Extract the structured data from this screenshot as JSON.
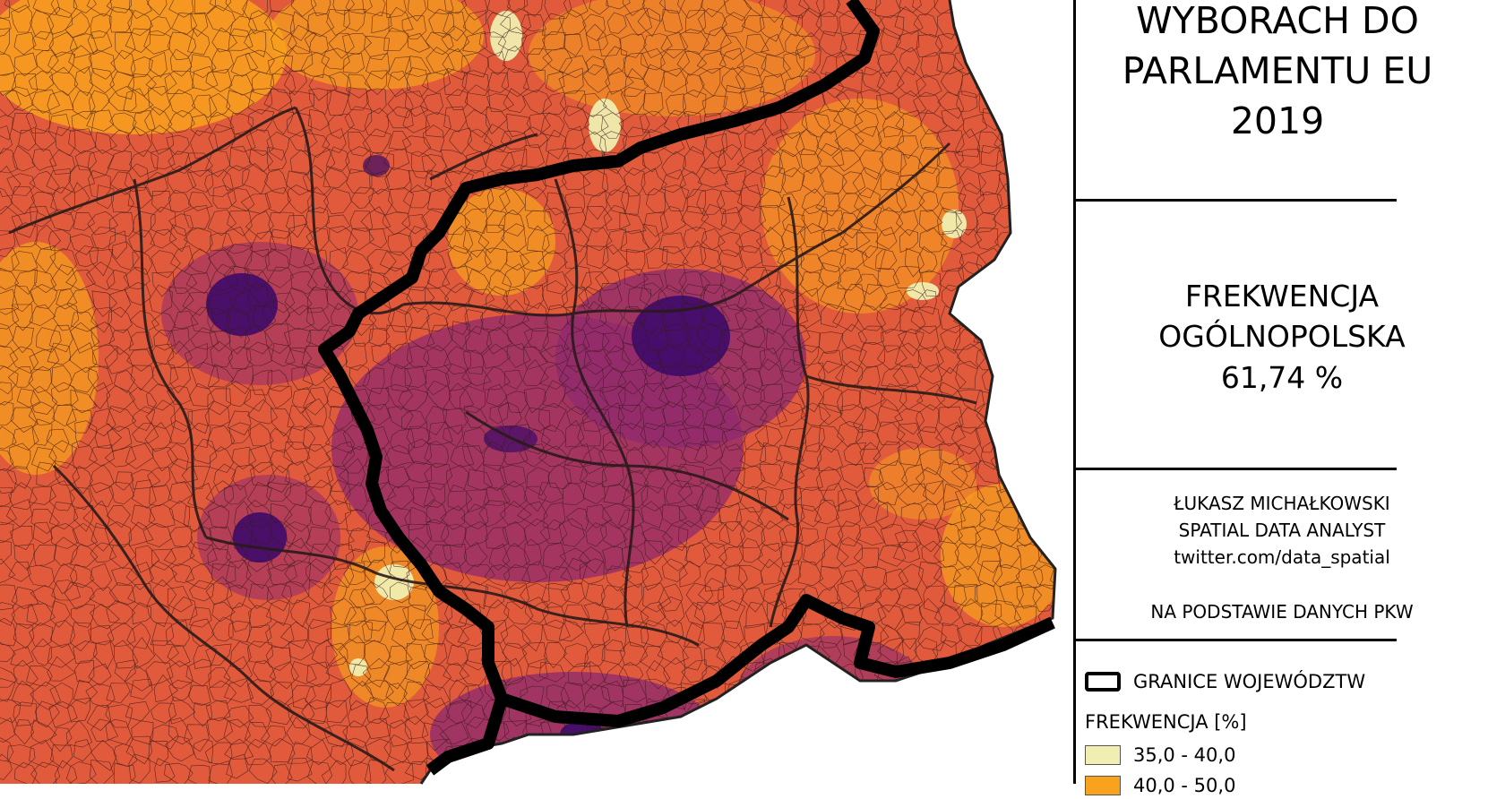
{
  "panel": {
    "title_lines": [
      "WYBORACH DO",
      "PARLAMENTU EU",
      "2019"
    ],
    "turnout_label_lines": [
      "FREKWENCJA",
      "OGÓLNOPOLSKA"
    ],
    "turnout_value": "61,74 %",
    "credits": [
      "ŁUKASZ MICHAŁKOWSKI",
      "SPATIAL DATA ANALYST",
      "twitter.com/data_spatial"
    ],
    "source": "NA PODSTAWIE DANYCH PKW"
  },
  "legend": {
    "borders_label": "GRANICE WOJEWÓDZTW",
    "scale_title": "FREKWENCJA [%]",
    "classes": [
      {
        "label": "35,0 - 40,0",
        "color": "#f0eeb0"
      },
      {
        "label": "40,0 - 50,0",
        "color": "#f8a21d"
      }
    ]
  },
  "map_palette": {
    "light": "#f0eeb0",
    "orange": "#f8a21d",
    "red_orange": "#e05a3b",
    "magenta": "#902a6e",
    "dark_purple": "#3d0a6b",
    "border": "#000000"
  }
}
